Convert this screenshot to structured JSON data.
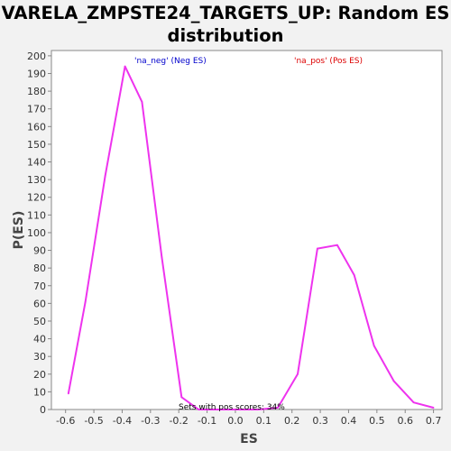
{
  "chart_data": {
    "type": "line",
    "title": "VARELA_ZMPSTE24_TARGETS_UP: Random ES distribution",
    "xlabel": "ES",
    "ylabel": "P(ES)",
    "xlim": [
      -0.65,
      0.73
    ],
    "ylim": [
      0,
      203
    ],
    "xticks": [
      -0.6,
      -0.5,
      -0.4,
      -0.3,
      -0.2,
      -0.1,
      0.0,
      0.1,
      0.2,
      0.3,
      0.4,
      0.5,
      0.6,
      0.7
    ],
    "xtick_labels": [
      "-0.6",
      "-0.5",
      "-0.4",
      "-0.3",
      "-0.2",
      "-0.1",
      "0.0",
      "0.1",
      "0.2",
      "0.3",
      "0.4",
      "0.5",
      "0.6",
      "0.7"
    ],
    "yticks": [
      0,
      10,
      20,
      30,
      40,
      50,
      60,
      70,
      80,
      90,
      100,
      110,
      120,
      130,
      140,
      150,
      160,
      170,
      180,
      190,
      200
    ],
    "ytick_labels": [
      "0",
      "10",
      "20",
      "30",
      "40",
      "50",
      "60",
      "70",
      "80",
      "90",
      "100",
      "110",
      "120",
      "130",
      "140",
      "150",
      "160",
      "170",
      "180",
      "190",
      "200"
    ],
    "grid": false,
    "series": [
      {
        "color": "#ee33ee",
        "x": [
          -0.59,
          -0.53,
          -0.46,
          -0.39,
          -0.33,
          -0.26,
          -0.19,
          -0.13,
          -0.06,
          0.01,
          0.08,
          0.15,
          0.22,
          0.29,
          0.36,
          0.42,
          0.49,
          0.56,
          0.63,
          0.7
        ],
        "y": [
          9,
          61,
          132,
          194,
          174,
          86,
          7,
          0,
          0,
          0,
          0,
          1,
          20,
          91,
          93,
          76,
          36,
          16,
          4,
          1
        ]
      }
    ],
    "annotations": [
      {
        "text": "'na_neg' (Neg ES)",
        "color": "#0000cc"
      },
      {
        "text": "'na_pos' (Pos ES)",
        "color": "#dd0000"
      },
      {
        "text": "Sets with pos scores: 34%",
        "color": "#000000"
      }
    ]
  }
}
